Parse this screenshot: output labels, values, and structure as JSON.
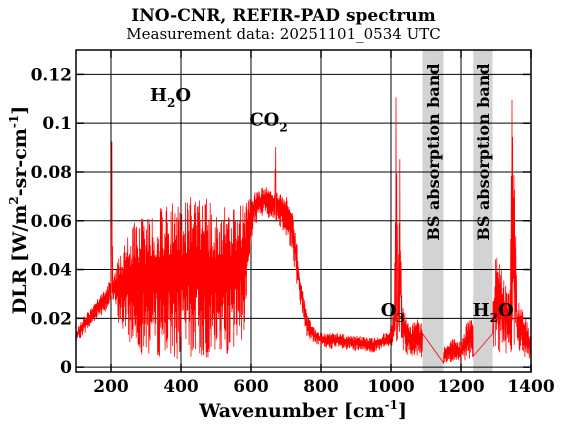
{
  "chart_data": {
    "type": "line",
    "title": "INO-CNR, REFIR-PAD spectrum",
    "subtitle": "Measurement data: 20251101_0534 UTC",
    "xlabel": "Wavenumber [cm-1]",
    "xlabel_parts": {
      "base": "Wavenumber [cm",
      "sup": "-1",
      "end": "]"
    },
    "ylabel": "DLR [W/m2-sr-cm-1]",
    "ylabel_parts": {
      "a": "DLR [W/m",
      "sup1": "2",
      "b": "-sr-cm",
      "sup2": "-1",
      "c": "]"
    },
    "xlim": [
      100,
      1400
    ],
    "ylim": [
      -0.002,
      0.13
    ],
    "xticks": [
      200,
      400,
      600,
      800,
      1000,
      1200,
      1400
    ],
    "yticks": [
      0,
      0.02,
      0.04,
      0.06,
      0.08,
      0.1,
      0.12
    ],
    "xtick_labels": [
      "200",
      "400",
      "600",
      "800",
      "1000",
      "1200",
      "1400"
    ],
    "ytick_labels": [
      "0",
      "0.02",
      "0.04",
      "0.06",
      "0.08",
      "0.1",
      "0.12"
    ],
    "grid": true,
    "series_color": "#ff0000",
    "bands": [
      {
        "x0": 1090,
        "x1": 1150,
        "label": "BS absorption band",
        "color": "#d3d3d3"
      },
      {
        "x0": 1235,
        "x1": 1290,
        "label": "BS absorption band",
        "color": "#d3d3d3"
      }
    ],
    "annotations": [
      {
        "base": "H",
        "sub": "2",
        "rest": "O",
        "x": 370,
        "y": 0.109
      },
      {
        "base": "CO",
        "sub": "2",
        "rest": "",
        "x": 650,
        "y": 0.099
      },
      {
        "base": "O",
        "sub": "3",
        "rest": "",
        "x": 1005,
        "y": 0.021
      },
      {
        "base": "H",
        "sub": "2",
        "rest": "O",
        "x": 1292,
        "y": 0.021
      }
    ],
    "series": [
      {
        "x": [
          100,
          120,
          140,
          160,
          180,
          200,
          202,
          205,
          210,
          220,
          240,
          260,
          280,
          300,
          320,
          340,
          360,
          380,
          400,
          420,
          440,
          460,
          480,
          500,
          520,
          540,
          560,
          580,
          600,
          610,
          620,
          640,
          660,
          668,
          670,
          672,
          680,
          700,
          720,
          740,
          760,
          780,
          800,
          850,
          900,
          950,
          980,
          1000,
          1010,
          1015,
          1020,
          1025,
          1030,
          1040,
          1060,
          1080,
          1090,
          1150,
          1180,
          1200,
          1220,
          1230,
          1235,
          1290,
          1300,
          1320,
          1340,
          1345,
          1360,
          1380,
          1400
        ],
        "upper": [
          0.015,
          0.02,
          0.024,
          0.028,
          0.032,
          0.036,
          0.114,
          0.04,
          0.04,
          0.045,
          0.052,
          0.058,
          0.062,
          0.062,
          0.064,
          0.066,
          0.066,
          0.068,
          0.068,
          0.071,
          0.07,
          0.071,
          0.068,
          0.065,
          0.066,
          0.064,
          0.066,
          0.068,
          0.069,
          0.072,
          0.073,
          0.074,
          0.072,
          0.073,
          0.115,
          0.072,
          0.072,
          0.07,
          0.066,
          0.04,
          0.022,
          0.016,
          0.014,
          0.014,
          0.013,
          0.012,
          0.014,
          0.016,
          0.03,
          0.127,
          0.03,
          0.09,
          0.03,
          0.022,
          0.018,
          0.02,
          0.018,
          0.008,
          0.012,
          0.01,
          0.02,
          0.025,
          0.02,
          0.03,
          0.05,
          0.04,
          0.03,
          0.13,
          0.03,
          0.022,
          0.014
        ],
        "lower": [
          0.01,
          0.013,
          0.016,
          0.02,
          0.022,
          0.025,
          0.025,
          0.025,
          0.024,
          0.018,
          0.012,
          0.008,
          0.006,
          0.004,
          0.004,
          0.004,
          0.003,
          0.003,
          0.003,
          0.003,
          0.003,
          0.003,
          0.003,
          0.003,
          0.004,
          0.006,
          0.008,
          0.012,
          0.05,
          0.058,
          0.06,
          0.062,
          0.06,
          0.06,
          0.06,
          0.06,
          0.058,
          0.054,
          0.044,
          0.026,
          0.012,
          0.01,
          0.008,
          0.007,
          0.006,
          0.006,
          0.007,
          0.008,
          0.01,
          0.01,
          0.01,
          0.01,
          0.008,
          0.005,
          0.004,
          0.003,
          0.002,
          0.001,
          0.002,
          0.001,
          0.003,
          0.004,
          0.004,
          0.005,
          0.006,
          0.006,
          0.005,
          0.005,
          0.004,
          0.004,
          0.003
        ]
      }
    ]
  }
}
